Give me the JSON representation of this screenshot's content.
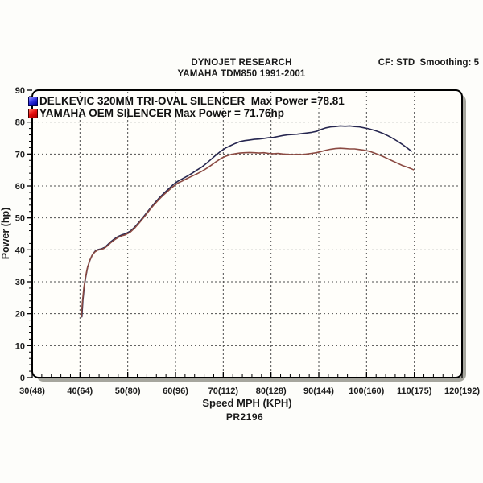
{
  "header": {
    "title": "DYNOJET RESEARCH",
    "subtitle": "YAMAHA TDM850 1991-2001",
    "settings": "CF: STD  Smoothing: 5"
  },
  "legend": {
    "items": [
      {
        "text": "DELKEVIC 320MM TRI-OVAL SILENCER  Max Power =78.81",
        "swatch_color": "#1a1ae0"
      },
      {
        "text": "YAMAHA OEM SILENCER Max Power = 71.76hp",
        "swatch_color": "#e81111"
      }
    ]
  },
  "axes": {
    "x_title": "Speed MPH (KPH)",
    "y_title": "Power (hp)"
  },
  "footer": {
    "code": "PR2196"
  },
  "colors": {
    "page_bg": "#fdfdfa",
    "plot_bg": "#fffefa",
    "border": "#000000",
    "shadow": "#a6a69e",
    "grid": "#4d4d4d",
    "delkevic_curve": "#26264f",
    "oem_curve": "#8b4a42"
  },
  "chart_data": {
    "type": "line",
    "title": "DYNOJET RESEARCH",
    "subtitle": "YAMAHA TDM850 1991-2001",
    "xlabel": "Speed MPH (KPH)",
    "ylabel": "Power (hp)",
    "xlim": [
      30,
      120
    ],
    "ylim": [
      0,
      90
    ],
    "grid": "dashed",
    "legend_position": "top-left-inside",
    "x_major_ticks": [
      30,
      40,
      50,
      60,
      70,
      80,
      90,
      100,
      110,
      120
    ],
    "x_tick_labels": [
      "30(48)",
      "40(64)",
      "50(80)",
      "60(96)",
      "70(112)",
      "80(128)",
      "90(144)",
      "100(160)",
      "110(175)",
      "120(192)"
    ],
    "y_major_ticks": [
      0,
      10,
      20,
      30,
      40,
      50,
      60,
      70,
      80,
      90
    ],
    "y_tick_labels": [
      "0",
      "10",
      "20",
      "30",
      "40",
      "50",
      "60",
      "70",
      "80",
      "90"
    ],
    "minor_tick_step": 2,
    "series": [
      {
        "name": "DELKEVIC 320MM TRI-OVAL SILENCER",
        "max_power_hp": 78.81,
        "color": "#26264f",
        "data_name": "delkevic-curve",
        "points": [
          [
            40.4,
            19
          ],
          [
            40.6,
            24
          ],
          [
            40.9,
            28.5
          ],
          [
            41.2,
            31.5
          ],
          [
            41.6,
            34.5
          ],
          [
            42.1,
            36.8
          ],
          [
            42.6,
            38.5
          ],
          [
            43.2,
            39.6
          ],
          [
            43.8,
            40.1
          ],
          [
            44.5,
            40.3
          ],
          [
            45.2,
            40.8
          ],
          [
            45.8,
            41.6
          ],
          [
            46.5,
            42.6
          ],
          [
            47.2,
            43.4
          ],
          [
            48,
            44.2
          ],
          [
            48.8,
            44.7
          ],
          [
            49.5,
            45
          ],
          [
            50.5,
            45.8
          ],
          [
            51.5,
            47.2
          ],
          [
            52.5,
            48.9
          ],
          [
            53.5,
            50.7
          ],
          [
            54.5,
            52.6
          ],
          [
            55.5,
            54.4
          ],
          [
            56.5,
            56.1
          ],
          [
            57.5,
            57.6
          ],
          [
            58.5,
            59
          ],
          [
            59.5,
            60.4
          ],
          [
            60.5,
            61.5
          ],
          [
            61.5,
            62.3
          ],
          [
            62.5,
            63.1
          ],
          [
            63.5,
            64
          ],
          [
            64.5,
            65
          ],
          [
            65.5,
            65.9
          ],
          [
            66.5,
            67.1
          ],
          [
            67.5,
            68.4
          ],
          [
            68.5,
            69.7
          ],
          [
            69.5,
            70.9
          ],
          [
            70.5,
            71.9
          ],
          [
            71.5,
            72.6
          ],
          [
            72.5,
            73.3
          ],
          [
            73.5,
            73.9
          ],
          [
            74.5,
            74.2
          ],
          [
            75.5,
            74.4
          ],
          [
            76.5,
            74.6
          ],
          [
            77.5,
            74.7
          ],
          [
            78.5,
            74.9
          ],
          [
            79.5,
            75.1
          ],
          [
            80.5,
            75.2
          ],
          [
            81.5,
            75.5
          ],
          [
            82.5,
            75.8
          ],
          [
            83.5,
            76
          ],
          [
            84.5,
            76.1
          ],
          [
            85.5,
            76.2
          ],
          [
            86.5,
            76.4
          ],
          [
            87.5,
            76.6
          ],
          [
            88.5,
            76.8
          ],
          [
            89.5,
            77.1
          ],
          [
            90.5,
            77.7
          ],
          [
            91.5,
            78.2
          ],
          [
            92.5,
            78.5
          ],
          [
            93.5,
            78.6
          ],
          [
            94.5,
            78.8
          ],
          [
            95.5,
            78.7
          ],
          [
            96.5,
            78.8
          ],
          [
            97.5,
            78.6
          ],
          [
            98.5,
            78.5
          ],
          [
            99.5,
            78.2
          ],
          [
            100.5,
            77.9
          ],
          [
            101.5,
            77.5
          ],
          [
            102.5,
            77
          ],
          [
            103.5,
            76.4
          ],
          [
            104.5,
            75.7
          ],
          [
            105.5,
            74.9
          ],
          [
            106.5,
            74
          ],
          [
            107.5,
            73
          ],
          [
            108.5,
            71.9
          ],
          [
            109.4,
            70.9
          ]
        ]
      },
      {
        "name": "YAMAHA OEM SILENCER",
        "max_power_hp": 71.76,
        "color": "#8b4a42",
        "data_name": "oem-curve",
        "points": [
          [
            40.3,
            19
          ],
          [
            40.5,
            23.5
          ],
          [
            40.8,
            28
          ],
          [
            41.1,
            31
          ],
          [
            41.5,
            34
          ],
          [
            42,
            36.5
          ],
          [
            42.5,
            38.2
          ],
          [
            43.1,
            39.3
          ],
          [
            43.7,
            39.9
          ],
          [
            44.4,
            40.1
          ],
          [
            45.1,
            40.5
          ],
          [
            45.8,
            41.3
          ],
          [
            46.5,
            42.3
          ],
          [
            47.2,
            43.1
          ],
          [
            48,
            43.9
          ],
          [
            48.8,
            44.4
          ],
          [
            49.5,
            44.7
          ],
          [
            50.5,
            45.5
          ],
          [
            51.5,
            46.9
          ],
          [
            52.5,
            48.6
          ],
          [
            53.5,
            50.4
          ],
          [
            54.5,
            52.3
          ],
          [
            55.5,
            54.1
          ],
          [
            56.5,
            55.7
          ],
          [
            57.5,
            57.2
          ],
          [
            58.5,
            58.5
          ],
          [
            59.5,
            59.8
          ],
          [
            60.5,
            60.9
          ],
          [
            61.5,
            61.6
          ],
          [
            62.5,
            62.4
          ],
          [
            63.5,
            63.1
          ],
          [
            64.5,
            63.8
          ],
          [
            65.5,
            64.6
          ],
          [
            66.5,
            65.5
          ],
          [
            67.5,
            66.5
          ],
          [
            68.5,
            67.6
          ],
          [
            69.5,
            68.6
          ],
          [
            70.5,
            69.3
          ],
          [
            71.5,
            69.8
          ],
          [
            72.5,
            70.1
          ],
          [
            73.5,
            70.3
          ],
          [
            74.5,
            70.4
          ],
          [
            75.5,
            70.5
          ],
          [
            76.5,
            70.4
          ],
          [
            77.5,
            70.3
          ],
          [
            78.5,
            70.4
          ],
          [
            79.5,
            70.2
          ],
          [
            80.5,
            70.1
          ],
          [
            81.5,
            70.2
          ],
          [
            82.5,
            70
          ],
          [
            83.5,
            69.9
          ],
          [
            84.5,
            69.8
          ],
          [
            85.5,
            69.9
          ],
          [
            86.5,
            69.8
          ],
          [
            87.5,
            70
          ],
          [
            88.5,
            70.2
          ],
          [
            89.5,
            70.4
          ],
          [
            90.5,
            70.8
          ],
          [
            91.5,
            71.2
          ],
          [
            92.5,
            71.5
          ],
          [
            93.5,
            71.7
          ],
          [
            94.5,
            71.8
          ],
          [
            95.5,
            71.7
          ],
          [
            96.5,
            71.6
          ],
          [
            97.5,
            71.6
          ],
          [
            98.5,
            71.4
          ],
          [
            99.5,
            71.2
          ],
          [
            100.5,
            70.9
          ],
          [
            101.5,
            70.4
          ],
          [
            102.5,
            69.8
          ],
          [
            103.5,
            69.2
          ],
          [
            104.5,
            68.5
          ],
          [
            105.5,
            67.8
          ],
          [
            106.5,
            67.1
          ],
          [
            107.5,
            66.4
          ],
          [
            108.5,
            65.9
          ],
          [
            109.2,
            65.5
          ],
          [
            109.8,
            65.1
          ]
        ]
      }
    ]
  }
}
